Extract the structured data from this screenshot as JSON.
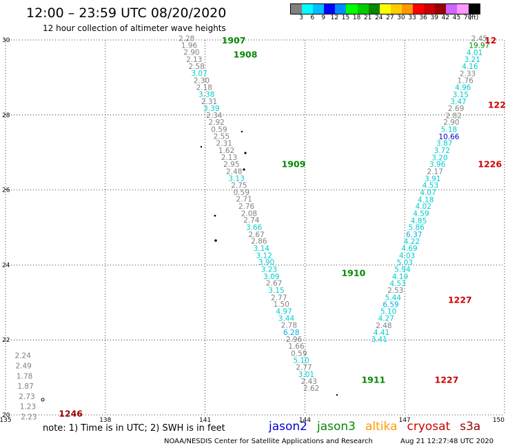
{
  "header": {
    "title": "12:00 – 23:59 UTC 08/20/2020",
    "subtitle": "12 hour collection of altimeter wave heights"
  },
  "legend": {
    "colors": [
      "#808080",
      "#00ffff",
      "#00bfff",
      "#0000ff",
      "#008cff",
      "#00ff00",
      "#00cc00",
      "#008800",
      "#ffff00",
      "#ffcc00",
      "#ff9900",
      "#ff0000",
      "#cc0000",
      "#990000",
      "#cc66ff",
      "#ff99ff",
      "#000000"
    ],
    "labels": [
      "3",
      "6",
      "9",
      "12",
      "15",
      "18",
      "21",
      "24",
      "27",
      "30",
      "33",
      "36",
      "39",
      "42",
      "45",
      "70",
      "(ft)"
    ]
  },
  "footer": {
    "note": "note: 1) Time is in UTC; 2) SWH is in feet",
    "satellites": [
      {
        "name": "jason2",
        "color": "#0000cc"
      },
      {
        "name": "jason3",
        "color": "#008800"
      },
      {
        "name": "altika",
        "color": "#ff9900"
      },
      {
        "name": "cryosat",
        "color": "#cc0000"
      },
      {
        "name": "s3a",
        "color": "#990000"
      }
    ],
    "credit": "NOAA/NESDIS Center for Satellite Applications and Research",
    "timestamp": "Aug 21 12:27:48 UTC 2020"
  },
  "chart_data": {
    "type": "scatter",
    "xlim": [
      135,
      150
    ],
    "ylim": [
      20,
      30
    ],
    "x_ticks": [
      135,
      138,
      141,
      144,
      147,
      150
    ],
    "y_ticks": [
      20,
      22,
      24,
      26,
      28,
      30
    ],
    "grid": true,
    "track_labels": [
      {
        "text": "1907",
        "lon": 141.5,
        "lat": 30.0,
        "color": "#008800"
      },
      {
        "text": "1908",
        "lon": 141.85,
        "lat": 29.62,
        "color": "#008800"
      },
      {
        "text": "1909",
        "lon": 143.3,
        "lat": 26.7,
        "color": "#008800"
      },
      {
        "text": "1910",
        "lon": 145.1,
        "lat": 23.8,
        "color": "#008800"
      },
      {
        "text": "1911",
        "lon": 145.7,
        "lat": 20.95,
        "color": "#008800"
      },
      {
        "text": "12",
        "lon": 149.4,
        "lat": 30.0,
        "color": "#cc0000"
      },
      {
        "text": "122",
        "lon": 149.5,
        "lat": 28.28,
        "color": "#cc0000"
      },
      {
        "text": "1226",
        "lon": 149.2,
        "lat": 26.7,
        "color": "#cc0000"
      },
      {
        "text": "1227",
        "lon": 148.3,
        "lat": 23.08,
        "color": "#cc0000"
      },
      {
        "text": "1227",
        "lon": 147.9,
        "lat": 20.95,
        "color": "#cc0000"
      },
      {
        "text": "1246",
        "lon": 136.6,
        "lat": 20.05,
        "color": "#990000"
      }
    ],
    "points": [
      {
        "text": "2.28",
        "lon": 140.2,
        "lat": 30.03,
        "color": "#808080"
      },
      {
        "text": "1.96",
        "lon": 140.28,
        "lat": 29.84,
        "color": "#808080"
      },
      {
        "text": "2.90",
        "lon": 140.35,
        "lat": 29.66,
        "color": "#808080"
      },
      {
        "text": "2.13",
        "lon": 140.43,
        "lat": 29.47,
        "color": "#808080"
      },
      {
        "text": "2.58",
        "lon": 140.5,
        "lat": 29.28,
        "color": "#808080"
      },
      {
        "text": "3.07",
        "lon": 140.58,
        "lat": 29.1,
        "color": "#00cccc"
      },
      {
        "text": "2.30",
        "lon": 140.65,
        "lat": 28.91,
        "color": "#808080"
      },
      {
        "text": "2.18",
        "lon": 140.73,
        "lat": 28.72,
        "color": "#808080"
      },
      {
        "text": "3.38",
        "lon": 140.8,
        "lat": 28.54,
        "color": "#00cccc"
      },
      {
        "text": "2.31",
        "lon": 140.88,
        "lat": 28.35,
        "color": "#808080"
      },
      {
        "text": "3.39",
        "lon": 140.95,
        "lat": 28.16,
        "color": "#00cccc"
      },
      {
        "text": "2.34",
        "lon": 141.03,
        "lat": 27.98,
        "color": "#808080"
      },
      {
        "text": "2.92",
        "lon": 141.1,
        "lat": 27.79,
        "color": "#808080"
      },
      {
        "text": "0.59",
        "lon": 141.18,
        "lat": 27.6,
        "color": "#808080"
      },
      {
        "text": "2.55",
        "lon": 141.25,
        "lat": 27.42,
        "color": "#808080"
      },
      {
        "text": "2.31",
        "lon": 141.33,
        "lat": 27.23,
        "color": "#808080"
      },
      {
        "text": "1.62",
        "lon": 141.4,
        "lat": 27.04,
        "color": "#808080"
      },
      {
        "text": "2.13",
        "lon": 141.48,
        "lat": 26.86,
        "color": "#808080"
      },
      {
        "text": "2.95",
        "lon": 141.55,
        "lat": 26.67,
        "color": "#808080"
      },
      {
        "text": "2.48",
        "lon": 141.63,
        "lat": 26.48,
        "color": "#808080"
      },
      {
        "text": "3.13",
        "lon": 141.7,
        "lat": 26.3,
        "color": "#00cccc"
      },
      {
        "text": "2.75",
        "lon": 141.78,
        "lat": 26.11,
        "color": "#808080"
      },
      {
        "text": "0.59",
        "lon": 141.85,
        "lat": 25.92,
        "color": "#808080"
      },
      {
        "text": "2.71",
        "lon": 141.93,
        "lat": 25.74,
        "color": "#808080"
      },
      {
        "text": "2.76",
        "lon": 142.0,
        "lat": 25.55,
        "color": "#808080"
      },
      {
        "text": "2.08",
        "lon": 142.08,
        "lat": 25.36,
        "color": "#808080"
      },
      {
        "text": "2.74",
        "lon": 142.15,
        "lat": 25.18,
        "color": "#808080"
      },
      {
        "text": "3.66",
        "lon": 142.23,
        "lat": 24.99,
        "color": "#00cccc"
      },
      {
        "text": "2.67",
        "lon": 142.3,
        "lat": 24.8,
        "color": "#808080"
      },
      {
        "text": "2.86",
        "lon": 142.38,
        "lat": 24.62,
        "color": "#808080"
      },
      {
        "text": "3.14",
        "lon": 142.45,
        "lat": 24.43,
        "color": "#00cccc"
      },
      {
        "text": "3.12",
        "lon": 142.53,
        "lat": 24.24,
        "color": "#00cccc"
      },
      {
        "text": "3.90",
        "lon": 142.6,
        "lat": 24.06,
        "color": "#00cccc"
      },
      {
        "text": "3.23",
        "lon": 142.68,
        "lat": 23.87,
        "color": "#00cccc"
      },
      {
        "text": "3.09",
        "lon": 142.75,
        "lat": 23.68,
        "color": "#00cccc"
      },
      {
        "text": "2.67",
        "lon": 142.83,
        "lat": 23.5,
        "color": "#808080"
      },
      {
        "text": "3.15",
        "lon": 142.9,
        "lat": 23.31,
        "color": "#00cccc"
      },
      {
        "text": "2.77",
        "lon": 142.98,
        "lat": 23.12,
        "color": "#808080"
      },
      {
        "text": "1.50",
        "lon": 143.05,
        "lat": 22.94,
        "color": "#808080"
      },
      {
        "text": "4.97",
        "lon": 143.13,
        "lat": 22.75,
        "color": "#00cccc"
      },
      {
        "text": "3.44",
        "lon": 143.2,
        "lat": 22.56,
        "color": "#00cccc"
      },
      {
        "text": "2.78",
        "lon": 143.28,
        "lat": 22.38,
        "color": "#808080"
      },
      {
        "text": "6.28",
        "lon": 143.35,
        "lat": 22.19,
        "color": "#00aaee"
      },
      {
        "text": "2.96",
        "lon": 143.43,
        "lat": 22.0,
        "color": "#808080"
      },
      {
        "text": "1.66",
        "lon": 143.5,
        "lat": 21.82,
        "color": "#808080"
      },
      {
        "text": "0.59",
        "lon": 143.58,
        "lat": 21.63,
        "color": "#808080"
      },
      {
        "text": "5.10",
        "lon": 143.65,
        "lat": 21.44,
        "color": "#00cccc"
      },
      {
        "text": "2.77",
        "lon": 143.73,
        "lat": 21.26,
        "color": "#808080"
      },
      {
        "text": "3.01",
        "lon": 143.8,
        "lat": 21.07,
        "color": "#00cccc"
      },
      {
        "text": "2.43",
        "lon": 143.88,
        "lat": 20.88,
        "color": "#808080"
      },
      {
        "text": "2.62",
        "lon": 143.95,
        "lat": 20.7,
        "color": "#808080"
      },
      {
        "text": "2.45",
        "lon": 149.0,
        "lat": 30.03,
        "color": "#808080"
      },
      {
        "text": "19.97",
        "lon": 148.93,
        "lat": 29.84,
        "color": "#008800"
      },
      {
        "text": "4.01",
        "lon": 148.86,
        "lat": 29.65,
        "color": "#00cccc"
      },
      {
        "text": "3.21",
        "lon": 148.79,
        "lat": 29.47,
        "color": "#00cccc"
      },
      {
        "text": "4.16",
        "lon": 148.72,
        "lat": 29.28,
        "color": "#00cccc"
      },
      {
        "text": "2.33",
        "lon": 148.65,
        "lat": 29.09,
        "color": "#808080"
      },
      {
        "text": "1.76",
        "lon": 148.58,
        "lat": 28.91,
        "color": "#808080"
      },
      {
        "text": "4.96",
        "lon": 148.51,
        "lat": 28.72,
        "color": "#00cccc"
      },
      {
        "text": "3.15",
        "lon": 148.44,
        "lat": 28.53,
        "color": "#00cccc"
      },
      {
        "text": "3.47",
        "lon": 148.37,
        "lat": 28.35,
        "color": "#00cccc"
      },
      {
        "text": "2.69",
        "lon": 148.3,
        "lat": 28.16,
        "color": "#808080"
      },
      {
        "text": "2.82",
        "lon": 148.23,
        "lat": 27.97,
        "color": "#808080"
      },
      {
        "text": "2.90",
        "lon": 148.16,
        "lat": 27.79,
        "color": "#808080"
      },
      {
        "text": "5.18",
        "lon": 148.09,
        "lat": 27.6,
        "color": "#00cccc"
      },
      {
        "text": "10.66",
        "lon": 148.02,
        "lat": 27.41,
        "color": "#0000cc"
      },
      {
        "text": "3.87",
        "lon": 147.95,
        "lat": 27.23,
        "color": "#00cccc"
      },
      {
        "text": "3.72",
        "lon": 147.88,
        "lat": 27.04,
        "color": "#00cccc"
      },
      {
        "text": "3.20",
        "lon": 147.81,
        "lat": 26.85,
        "color": "#00cccc"
      },
      {
        "text": "3.96",
        "lon": 147.74,
        "lat": 26.67,
        "color": "#00cccc"
      },
      {
        "text": "2.17",
        "lon": 147.67,
        "lat": 26.48,
        "color": "#808080"
      },
      {
        "text": "3.91",
        "lon": 147.6,
        "lat": 26.29,
        "color": "#00cccc"
      },
      {
        "text": "4.53",
        "lon": 147.53,
        "lat": 26.11,
        "color": "#00cccc"
      },
      {
        "text": "4.07",
        "lon": 147.46,
        "lat": 25.92,
        "color": "#00cccc"
      },
      {
        "text": "4.18",
        "lon": 147.39,
        "lat": 25.73,
        "color": "#00cccc"
      },
      {
        "text": "4.02",
        "lon": 147.32,
        "lat": 25.55,
        "color": "#00cccc"
      },
      {
        "text": "4.59",
        "lon": 147.25,
        "lat": 25.36,
        "color": "#00cccc"
      },
      {
        "text": "4.85",
        "lon": 147.18,
        "lat": 25.17,
        "color": "#00cccc"
      },
      {
        "text": "5.86",
        "lon": 147.11,
        "lat": 24.99,
        "color": "#00cccc"
      },
      {
        "text": "6.37",
        "lon": 147.04,
        "lat": 24.8,
        "color": "#00aaee"
      },
      {
        "text": "4.22",
        "lon": 146.97,
        "lat": 24.61,
        "color": "#00cccc"
      },
      {
        "text": "4.69",
        "lon": 146.9,
        "lat": 24.43,
        "color": "#00cccc"
      },
      {
        "text": "4.03",
        "lon": 146.83,
        "lat": 24.24,
        "color": "#00cccc"
      },
      {
        "text": "5.03",
        "lon": 146.76,
        "lat": 24.05,
        "color": "#00cccc"
      },
      {
        "text": "5.94",
        "lon": 146.69,
        "lat": 23.87,
        "color": "#00cccc"
      },
      {
        "text": "4.19",
        "lon": 146.62,
        "lat": 23.68,
        "color": "#00cccc"
      },
      {
        "text": "4.53",
        "lon": 146.55,
        "lat": 23.49,
        "color": "#00cccc"
      },
      {
        "text": "2.53",
        "lon": 146.48,
        "lat": 23.31,
        "color": "#808080"
      },
      {
        "text": "5.44",
        "lon": 146.41,
        "lat": 23.12,
        "color": "#00cccc"
      },
      {
        "text": "6.59",
        "lon": 146.34,
        "lat": 22.93,
        "color": "#00aaee"
      },
      {
        "text": "5.10",
        "lon": 146.27,
        "lat": 22.75,
        "color": "#00cccc"
      },
      {
        "text": "4.27",
        "lon": 146.2,
        "lat": 22.56,
        "color": "#00cccc"
      },
      {
        "text": "2.48",
        "lon": 146.13,
        "lat": 22.37,
        "color": "#808080"
      },
      {
        "text": "4.41",
        "lon": 146.06,
        "lat": 22.19,
        "color": "#00cccc"
      },
      {
        "text": "3.41",
        "lon": 145.99,
        "lat": 22.0,
        "color": "#00cccc"
      },
      {
        "text": "2.24",
        "lon": 135.28,
        "lat": 21.57,
        "color": "#808080"
      },
      {
        "text": "2.49",
        "lon": 135.3,
        "lat": 21.3,
        "color": "#808080"
      },
      {
        "text": "1.78",
        "lon": 135.33,
        "lat": 21.02,
        "color": "#808080"
      },
      {
        "text": "1.87",
        "lon": 135.36,
        "lat": 20.75,
        "color": "#808080"
      },
      {
        "text": "2.73",
        "lon": 135.4,
        "lat": 20.48,
        "color": "#808080"
      },
      {
        "text": "1.23",
        "lon": 135.43,
        "lat": 20.21,
        "color": "#808080"
      },
      {
        "text": "2.23",
        "lon": 135.46,
        "lat": 19.94,
        "color": "#808080"
      }
    ]
  }
}
